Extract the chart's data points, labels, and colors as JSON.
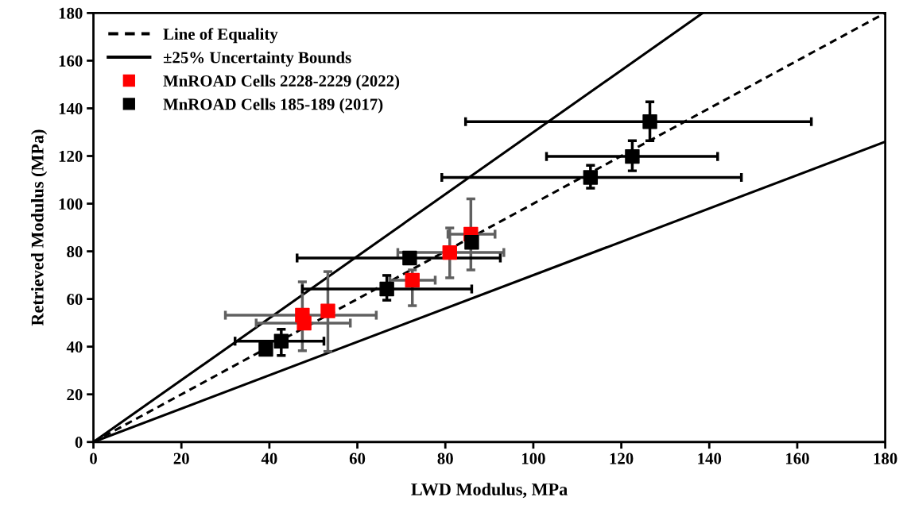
{
  "chart_data": {
    "type": "scatter",
    "xlabel": "LWD Modulus, MPa",
    "ylabel": "Retrieved Modulus (MPa)",
    "xlim": [
      0,
      180
    ],
    "ylim": [
      0,
      180
    ],
    "xticks": [
      0,
      20,
      40,
      60,
      80,
      100,
      120,
      140,
      160,
      180
    ],
    "yticks": [
      0,
      20,
      40,
      60,
      80,
      100,
      120,
      140,
      160,
      180
    ],
    "grid": false,
    "legend": "top left",
    "marker": "square",
    "series": [
      {
        "name": "Line of Equality",
        "type": "line",
        "line_style": "dashed",
        "marker": "none",
        "color": "#000000",
        "x": [
          0,
          180
        ],
        "values": [
          0,
          180
        ]
      },
      {
        "name": "±25% Uncertainty Bounds",
        "type": "line",
        "line_style": "solid",
        "marker": "none",
        "color": "#000000",
        "x": [
          0,
          138.5
        ],
        "values": [
          0,
          180
        ]
      },
      {
        "type": "line",
        "line_style": "solid",
        "marker": "none",
        "color": "#000000",
        "x": [
          0,
          180
        ],
        "values": [
          0,
          126
        ]
      },
      {
        "name": "MnROAD Cells 2228-2229 (2022)",
        "color": "#ff0000",
        "x": [
          47.5,
          47.9,
          53.3,
          72.5,
          81,
          85.8
        ],
        "values": [
          53.2,
          49.9,
          55,
          67.9,
          79.5,
          87.2
        ],
        "xerrors": [
          [
            30,
            64.3
          ],
          [
            37,
            58.4
          ],
          null,
          [
            67.4,
            77.7
          ],
          [
            69.2,
            93.3
          ],
          [
            80.6,
            91.3
          ]
        ],
        "errors": [
          [
            38.3,
            67.2
          ],
          null,
          [
            38,
            71.5
          ],
          [
            57.2,
            72.2
          ],
          [
            68.9,
            89.8
          ],
          [
            72.2,
            102
          ]
        ]
      },
      {
        "name": "MnROAD Cells 185-189 (2017)",
        "color": "#000000",
        "x": [
          39.2,
          42.7,
          66.7,
          71.9,
          86,
          113,
          122.5,
          126.5
        ],
        "values": [
          38.9,
          42.3,
          64.2,
          77.2,
          83.8,
          111,
          119.8,
          134.4
        ],
        "xerrors": [
          null,
          [
            32.2,
            52.4
          ],
          [
            47.5,
            86
          ],
          [
            46.3,
            92.5
          ],
          null,
          [
            79.2,
            147.3
          ],
          [
            103,
            141.9
          ],
          [
            84.6,
            163.2
          ]
        ],
        "errors": [
          null,
          [
            36.3,
            47.3
          ],
          [
            59.5,
            69.9
          ],
          null,
          null,
          [
            106.5,
            116.1
          ],
          [
            113.8,
            126.4
          ],
          [
            126.4,
            142.7
          ]
        ]
      }
    ]
  }
}
